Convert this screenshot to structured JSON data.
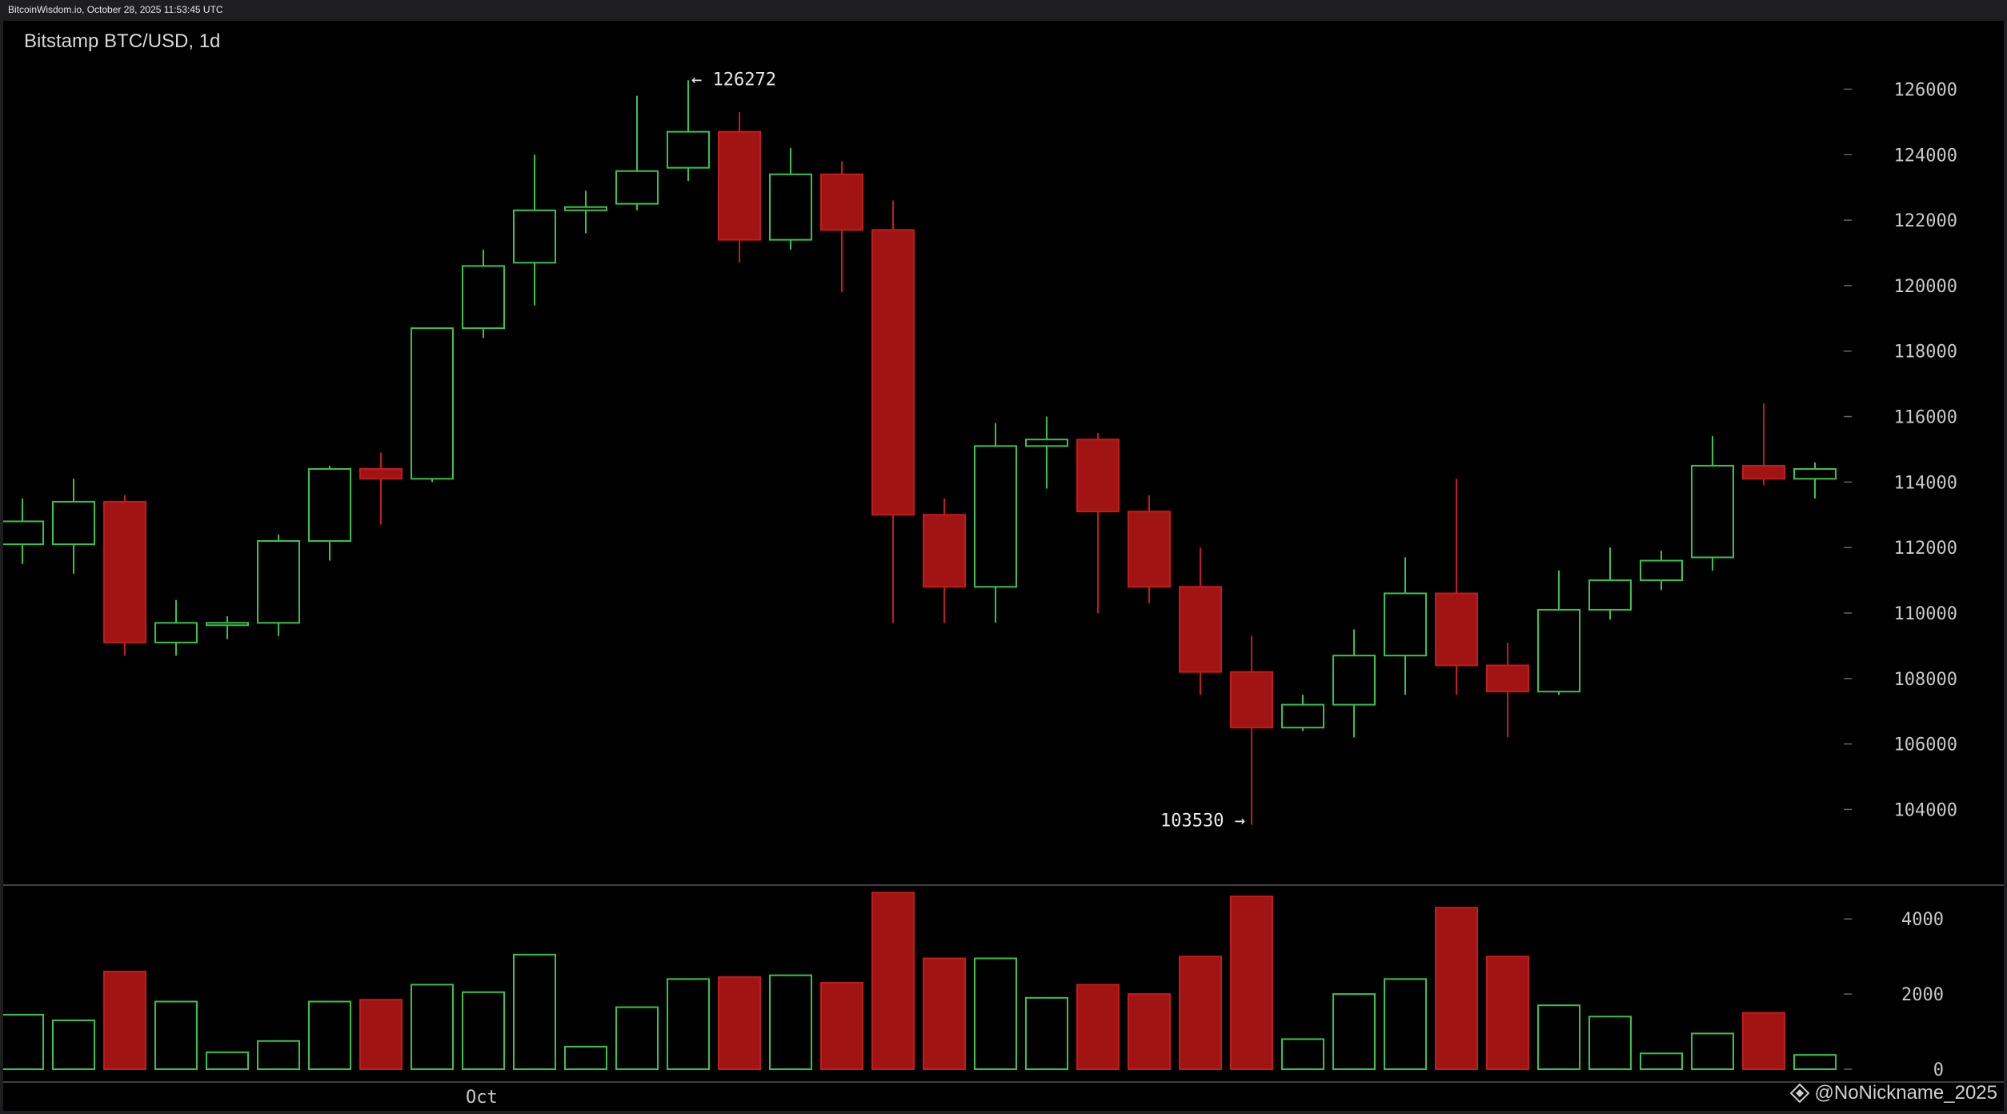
{
  "header": {
    "text": "BitcoinWisdom.io, October 28, 2025 11:53:45 UTC"
  },
  "watermark": {
    "text": "@NoNickname_2025",
    "icon": "diamond-logo-icon"
  },
  "colors": {
    "up": "#39c34a",
    "down": "#a11414",
    "down_border": "#c41b1b",
    "background": "#000000",
    "axis_text": "#c8c8c8",
    "separator": "#555555"
  },
  "chart_data": [
    {
      "type": "candlestick",
      "title": "Bitstamp BTC/USD, 1d",
      "x_tick_labels": [
        {
          "label": "Oct",
          "index": 9
        }
      ],
      "y_ticks": [
        104000,
        106000,
        108000,
        110000,
        112000,
        114000,
        116000,
        118000,
        120000,
        122000,
        124000,
        126000
      ],
      "ylim": [
        102300,
        127600
      ],
      "annotations": [
        {
          "text": "← 126272",
          "index": 13,
          "value": 126272,
          "side": "right"
        },
        {
          "text": "103530 →",
          "index": 24,
          "value": 103530,
          "side": "left"
        }
      ],
      "candles": [
        {
          "o": 112100,
          "h": 113500,
          "l": 111500,
          "c": 112800
        },
        {
          "o": 112100,
          "h": 114100,
          "l": 111200,
          "c": 113400
        },
        {
          "o": 113400,
          "h": 113600,
          "l": 108700,
          "c": 109100
        },
        {
          "o": 109100,
          "h": 110400,
          "l": 108700,
          "c": 109700
        },
        {
          "o": 109700,
          "h": 109900,
          "l": 109200,
          "c": 109700
        },
        {
          "o": 109700,
          "h": 112400,
          "l": 109300,
          "c": 112200
        },
        {
          "o": 112200,
          "h": 114500,
          "l": 111600,
          "c": 114400
        },
        {
          "o": 114400,
          "h": 114900,
          "l": 112700,
          "c": 114100
        },
        {
          "o": 114100,
          "h": 118700,
          "l": 114000,
          "c": 118700
        },
        {
          "o": 118700,
          "h": 121100,
          "l": 118400,
          "c": 120600
        },
        {
          "o": 120700,
          "h": 124000,
          "l": 119400,
          "c": 122300
        },
        {
          "o": 122300,
          "h": 122900,
          "l": 121600,
          "c": 122400
        },
        {
          "o": 122500,
          "h": 125800,
          "l": 122300,
          "c": 123500
        },
        {
          "o": 123600,
          "h": 126272,
          "l": 123200,
          "c": 124700
        },
        {
          "o": 124700,
          "h": 125300,
          "l": 120700,
          "c": 121400
        },
        {
          "o": 121400,
          "h": 124200,
          "l": 121100,
          "c": 123400
        },
        {
          "o": 123400,
          "h": 123800,
          "l": 119800,
          "c": 121700
        },
        {
          "o": 121700,
          "h": 122600,
          "l": 109700,
          "c": 113000
        },
        {
          "o": 113000,
          "h": 113500,
          "l": 109700,
          "c": 110800
        },
        {
          "o": 110800,
          "h": 115800,
          "l": 109700,
          "c": 115100
        },
        {
          "o": 115100,
          "h": 116000,
          "l": 113800,
          "c": 115300
        },
        {
          "o": 115300,
          "h": 115500,
          "l": 110000,
          "c": 113100
        },
        {
          "o": 113100,
          "h": 113600,
          "l": 110300,
          "c": 110800
        },
        {
          "o": 110800,
          "h": 112000,
          "l": 107500,
          "c": 108200
        },
        {
          "o": 108200,
          "h": 109300,
          "l": 103530,
          "c": 106500
        },
        {
          "o": 106500,
          "h": 107500,
          "l": 106400,
          "c": 107200
        },
        {
          "o": 107200,
          "h": 109500,
          "l": 106200,
          "c": 108700
        },
        {
          "o": 108700,
          "h": 111700,
          "l": 107500,
          "c": 110600
        },
        {
          "o": 110600,
          "h": 114100,
          "l": 107500,
          "c": 108400
        },
        {
          "o": 108400,
          "h": 109100,
          "l": 106200,
          "c": 107600
        },
        {
          "o": 107600,
          "h": 111300,
          "l": 107500,
          "c": 110100
        },
        {
          "o": 110100,
          "h": 112000,
          "l": 109800,
          "c": 111000
        },
        {
          "o": 111000,
          "h": 111900,
          "l": 110700,
          "c": 111600
        },
        {
          "o": 111700,
          "h": 115400,
          "l": 111300,
          "c": 114500
        },
        {
          "o": 114500,
          "h": 116400,
          "l": 113900,
          "c": 114100
        },
        {
          "o": 114100,
          "h": 114600,
          "l": 113500,
          "c": 114400
        }
      ]
    },
    {
      "type": "bar",
      "title": "",
      "y_ticks": [
        0,
        2000,
        4000
      ],
      "ylim": [
        0,
        4900
      ],
      "values": [
        1450,
        1300,
        2600,
        1800,
        450,
        750,
        1800,
        1850,
        2250,
        2050,
        3050,
        600,
        1650,
        2400,
        2450,
        2500,
        2300,
        4700,
        2950,
        2950,
        1900,
        2250,
        2000,
        3000,
        4600,
        800,
        2000,
        2400,
        4300,
        3000,
        1700,
        1400,
        420,
        950,
        1500,
        380
      ],
      "colors_follow_candles": true
    }
  ]
}
